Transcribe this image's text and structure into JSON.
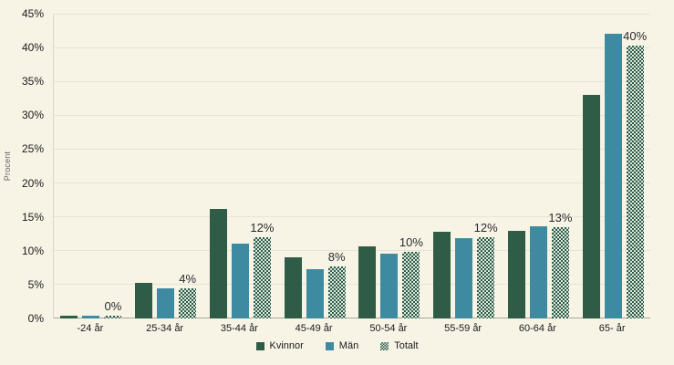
{
  "chart_data": {
    "type": "bar",
    "title": "",
    "xlabel": "",
    "ylabel": "Procent",
    "ylim": [
      0,
      45
    ],
    "ytick_step": 5,
    "ytick_suffix": "%",
    "grid": "horizontal",
    "legend_position": "bottom",
    "categories": [
      "-24 år",
      "25-34 år",
      "35-44 år",
      "45-49 år",
      "50-54 år",
      "55-59 år",
      "60-64 år",
      "65- år"
    ],
    "series": [
      {
        "name": "Kvinnor",
        "style": "solid",
        "color": "#2e5c46",
        "values": [
          0.4,
          5.2,
          16.2,
          9.0,
          10.7,
          12.8,
          13.0,
          33.0
        ]
      },
      {
        "name": "Män",
        "style": "solid",
        "color": "#3e8aa0",
        "values": [
          0.4,
          4.4,
          11.0,
          7.3,
          9.6,
          11.9,
          13.6,
          42.0
        ]
      },
      {
        "name": "Totalt",
        "style": "checker",
        "color": "#2e5c46",
        "values": [
          0.4,
          4.5,
          12.0,
          7.7,
          9.8,
          12.0,
          13.5,
          40.3
        ]
      }
    ],
    "bar_labels": [
      "0%",
      "4%",
      "12%",
      "8%",
      "10%",
      "12%",
      "13%",
      "40%"
    ],
    "bar_labels_on_series": "Totalt"
  },
  "colors": {
    "background": "#f7f4e6",
    "gridline": "#e7e4d7",
    "baseline": "#a9a69b",
    "axis_line": "#d9d6c9",
    "tick_text": "#1a1a1a",
    "value_label_text": "#2b2b2b",
    "pattern_light": "#dce8df"
  }
}
